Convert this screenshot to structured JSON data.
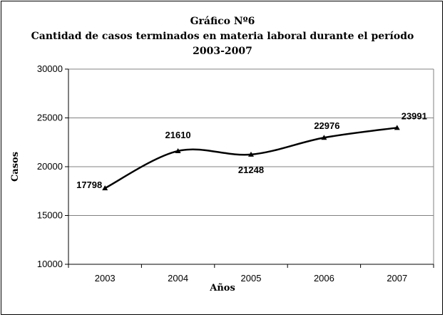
{
  "chart_data": {
    "type": "line",
    "title_lines": [
      "Gráfico Nº6",
      "Cantidad de casos terminados en materia laboral durante el período",
      "2003-2007"
    ],
    "xlabel": "Años",
    "ylabel": "Casos",
    "categories": [
      "2003",
      "2004",
      "2005",
      "2006",
      "2007"
    ],
    "series": [
      {
        "values": [
          17798,
          21610,
          21248,
          22976,
          23991
        ]
      }
    ],
    "data_labels": [
      "17798",
      "21610",
      "21248",
      "22976",
      "23991"
    ],
    "ylim": [
      10000,
      30000
    ],
    "yticks": [
      10000,
      15000,
      20000,
      25000,
      30000
    ],
    "ytick_labels": [
      "10000",
      "15000",
      "20000",
      "25000",
      "30000"
    ],
    "grid": true,
    "legend": "none",
    "line_color": "#000000",
    "grid_color": "#808080"
  }
}
